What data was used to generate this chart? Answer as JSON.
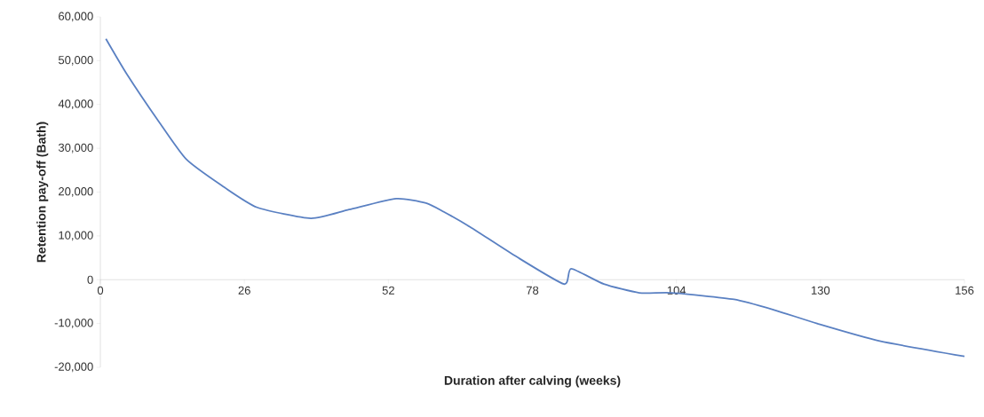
{
  "chart_data": {
    "type": "line",
    "xlabel": "Duration after calving (weeks)",
    "ylabel": "Retention pay-off (Bath)",
    "x": [
      1,
      4.75,
      10.6,
      15.5,
      21.9,
      28.3,
      38,
      44.9,
      53.4,
      58.8,
      62,
      66.8,
      74.8,
      83.7,
      85,
      90.9,
      97.3,
      103.2,
      114.4,
      121.9,
      129.4,
      140.7,
      156
    ],
    "series": [
      {
        "color": "#5a80c2",
        "values": [
          55000,
          47000,
          36000,
          27500,
          21500,
          16500,
          14000,
          16000,
          18500,
          17500,
          15500,
          12000,
          5500,
          -1000,
          2500,
          -1000,
          -3000,
          -3000,
          -4500,
          -7000,
          -10000,
          -14000,
          -17500
        ]
      }
    ],
    "xlim": [
      0,
      156
    ],
    "ylim": [
      -20000,
      60000
    ],
    "xticks": [
      0,
      26,
      52,
      78,
      104,
      130,
      156
    ],
    "yticks": [
      {
        "value": -20000,
        "label": "-20,000"
      },
      {
        "value": -10000,
        "label": "-10,000"
      },
      0,
      {
        "value": 10000,
        "label": "10,000"
      },
      {
        "value": 20000,
        "label": "20,000"
      },
      {
        "value": 30000,
        "label": "30,000"
      },
      {
        "value": 40000,
        "label": "40,000"
      },
      {
        "value": 50000,
        "label": "50,000"
      },
      {
        "value": 60000,
        "label": "60,000"
      }
    ],
    "grid": false,
    "legend": false,
    "marker": "none",
    "line_style": "solid"
  }
}
